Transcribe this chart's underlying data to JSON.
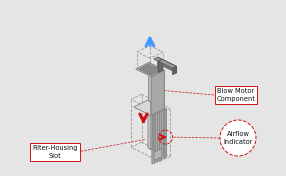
{
  "bg_color": "#e5e5e5",
  "face_front": "#c8c8c8",
  "face_right": "#a8a8a8",
  "face_top": "#d8d8d8",
  "face_dark": "#909090",
  "edge_color": "#808080",
  "dashed_color": "#999999",
  "pipe_color": "#7a7a7a",
  "pipe_top": "#9a9a9a",
  "arrow_blue": "#4499ff",
  "arrow_red": "#cc1111",
  "label_bg": "#ffffff",
  "label_border": "#cc1111",
  "label_text": "#111111",
  "slat_color": "#888888",
  "label1": "Filter-Housing\nSlot",
  "label2": "Blow Motor\nComponent",
  "label3": "Airflow\nIndicator",
  "iso_sx": 0.65,
  "iso_sy": 0.32,
  "iso_sz": 0.8,
  "ox": 148,
  "oy": 148
}
